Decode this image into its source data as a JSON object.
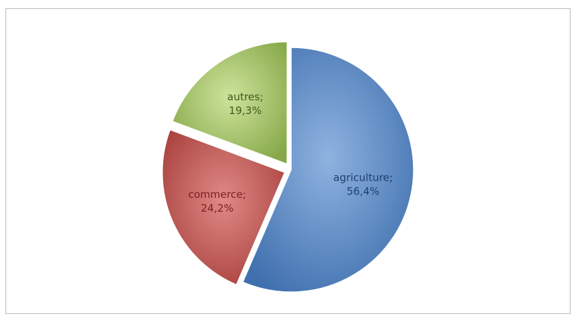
{
  "chart_data": {
    "type": "pie",
    "categories": [
      "agriculture",
      "commerce",
      "autres"
    ],
    "values": [
      56.4,
      24.2,
      19.3
    ],
    "labels": [
      [
        "agriculture;",
        "56,4%"
      ],
      [
        "commerce;",
        "24,2%"
      ],
      [
        "autres;",
        "19,3%"
      ]
    ],
    "colors": [
      "#4f81bd",
      "#c0504d",
      "#9bbb59"
    ],
    "label_colors": [
      "#1f3f6e",
      "#7a1f1f",
      "#3f5a1c"
    ],
    "exploded": [
      false,
      true,
      true
    ],
    "start_angle_deg": 0,
    "direction": "clockwise"
  }
}
